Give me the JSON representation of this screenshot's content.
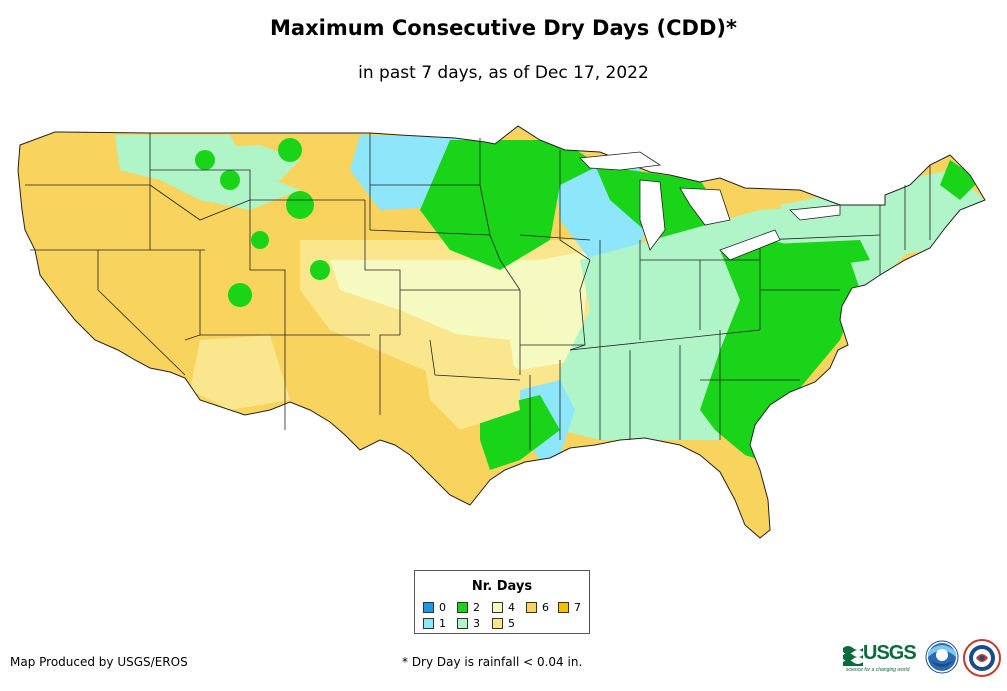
{
  "title": "Maximum Consecutive Dry Days (CDD)*",
  "subtitle": "in past 7 days, as of Dec 17, 2022",
  "legend": {
    "title": "Nr. Days",
    "items": [
      {
        "label": "0",
        "color": "#1a9ae6"
      },
      {
        "label": "1",
        "color": "#8de6fa"
      },
      {
        "label": "2",
        "color": "#19d419"
      },
      {
        "label": "3",
        "color": "#b0f5c8"
      },
      {
        "label": "4",
        "color": "#f5fac0"
      },
      {
        "label": "5",
        "color": "#fae68c"
      },
      {
        "label": "6",
        "color": "#f8d35e"
      },
      {
        "label": "7",
        "color": "#f5c000"
      }
    ]
  },
  "footer": {
    "producer": "Map Produced by USGS/EROS",
    "footnote": "* Dry Day is rainfall < 0.04 in."
  },
  "logos": {
    "usgs_text": "USGS",
    "usgs_tagline": "science for a changing world",
    "noaa": "noaa",
    "nws": "NWS"
  }
}
